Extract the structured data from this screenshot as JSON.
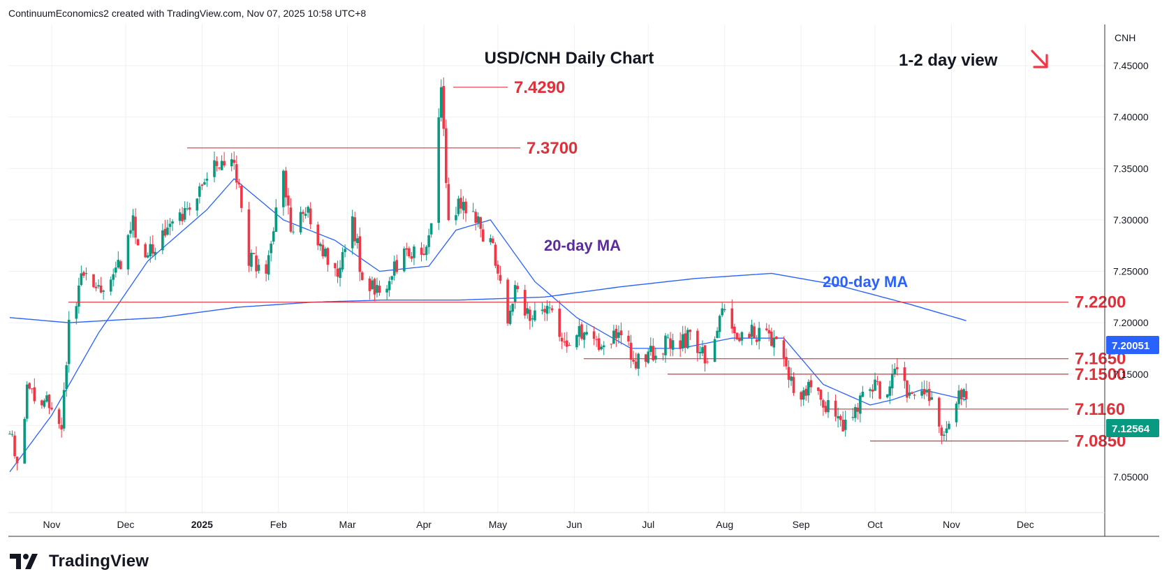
{
  "header": {
    "caption": "ContinuumEconomics2 created with TradingView.com, Nov 07, 2025 10:58 UTC+8"
  },
  "branding": {
    "logo_text": "TradingView",
    "logo_icon": "tradingview-logo-icon"
  },
  "chart_data": {
    "type": "candlestick",
    "title": "USD/CNH Daily Chart",
    "view_label": "1-2 day view",
    "view_arrow_icon": "arrow-down-right-icon",
    "currency_label": "CNH",
    "last_price_label": "7.12564",
    "ma200_price_label": "7.20051",
    "x_tick_labels": [
      "Nov",
      "Dec",
      "2025",
      "Feb",
      "Mar",
      "Apr",
      "May",
      "Jun",
      "Jul",
      "Aug",
      "Sep",
      "Oct",
      "Nov",
      "Dec"
    ],
    "y_tick_labels": [
      "7.45000",
      "7.40000",
      "7.35000",
      "7.30000",
      "7.25000",
      "7.20000",
      "7.15000",
      "7.10000",
      "7.05000"
    ],
    "ylim": [
      7.05,
      7.45
    ],
    "levels": [
      {
        "label": "7.4290",
        "value": 7.429
      },
      {
        "label": "7.3700",
        "value": 7.37
      },
      {
        "label": "7.2200",
        "value": 7.22
      },
      {
        "label": "7.1650",
        "value": 7.165
      },
      {
        "label": "7.1500",
        "value": 7.15
      },
      {
        "label": "7.1160",
        "value": 7.116
      },
      {
        "label": "7.0850",
        "value": 7.085
      }
    ],
    "ma_labels": {
      "ma20": "20-day MA",
      "ma200": "200-day MA"
    },
    "colors": {
      "up": "#089981",
      "down": "#f23645",
      "ma20": "#2962ff",
      "ma200": "#2962ff",
      "level": "#e0313b",
      "ma20_label": "#5b2c9b",
      "ma200_label": "#2962ff"
    },
    "candles_start": "2024-10-15",
    "anchors": [
      {
        "date": "2024-10-15",
        "price": 7.09
      },
      {
        "date": "2024-10-18",
        "price": 7.072
      },
      {
        "date": "2024-10-22",
        "price": 7.13
      },
      {
        "date": "2024-10-31",
        "price": 7.125
      },
      {
        "date": "2024-11-05",
        "price": 7.1
      },
      {
        "date": "2024-11-08",
        "price": 7.2
      },
      {
        "date": "2024-11-13",
        "price": 7.24
      },
      {
        "date": "2024-11-20",
        "price": 7.235
      },
      {
        "date": "2024-11-27",
        "price": 7.245
      },
      {
        "date": "2024-12-04",
        "price": 7.295
      },
      {
        "date": "2024-12-10",
        "price": 7.265
      },
      {
        "date": "2024-12-18",
        "price": 7.29
      },
      {
        "date": "2024-12-26",
        "price": 7.31
      },
      {
        "date": "2025-01-03",
        "price": 7.35
      },
      {
        "date": "2025-01-10",
        "price": 7.36
      },
      {
        "date": "2025-01-15",
        "price": 7.345
      },
      {
        "date": "2025-01-20",
        "price": 7.265
      },
      {
        "date": "2025-01-27",
        "price": 7.25
      },
      {
        "date": "2025-02-03",
        "price": 7.355
      },
      {
        "date": "2025-02-06",
        "price": 7.285
      },
      {
        "date": "2025-02-12",
        "price": 7.31
      },
      {
        "date": "2025-02-17",
        "price": 7.285
      },
      {
        "date": "2025-02-25",
        "price": 7.24
      },
      {
        "date": "2025-03-03",
        "price": 7.3
      },
      {
        "date": "2025-03-07",
        "price": 7.245
      },
      {
        "date": "2025-03-14",
        "price": 7.23
      },
      {
        "date": "2025-03-24",
        "price": 7.27
      },
      {
        "date": "2025-04-01",
        "price": 7.275
      },
      {
        "date": "2025-04-04",
        "price": 7.3
      },
      {
        "date": "2025-04-08",
        "price": 7.42
      },
      {
        "date": "2025-04-11",
        "price": 7.3
      },
      {
        "date": "2025-04-15",
        "price": 7.315
      },
      {
        "date": "2025-04-22",
        "price": 7.3
      },
      {
        "date": "2025-04-29",
        "price": 7.27
      },
      {
        "date": "2025-05-05",
        "price": 7.205
      },
      {
        "date": "2025-05-09",
        "price": 7.235
      },
      {
        "date": "2025-05-14",
        "price": 7.2
      },
      {
        "date": "2025-05-23",
        "price": 7.21
      },
      {
        "date": "2025-05-27",
        "price": 7.18
      },
      {
        "date": "2025-06-03",
        "price": 7.195
      },
      {
        "date": "2025-06-10",
        "price": 7.18
      },
      {
        "date": "2025-06-20",
        "price": 7.185
      },
      {
        "date": "2025-06-27",
        "price": 7.16
      },
      {
        "date": "2025-07-08",
        "price": 7.18
      },
      {
        "date": "2025-07-18",
        "price": 7.185
      },
      {
        "date": "2025-07-25",
        "price": 7.16
      },
      {
        "date": "2025-07-31",
        "price": 7.21
      },
      {
        "date": "2025-08-04",
        "price": 7.185
      },
      {
        "date": "2025-08-12",
        "price": 7.19
      },
      {
        "date": "2025-08-20",
        "price": 7.185
      },
      {
        "date": "2025-08-25",
        "price": 7.165
      },
      {
        "date": "2025-09-01",
        "price": 7.12
      },
      {
        "date": "2025-09-05",
        "price": 7.14
      },
      {
        "date": "2025-09-12",
        "price": 7.12
      },
      {
        "date": "2025-09-17",
        "price": 7.1
      },
      {
        "date": "2025-09-24",
        "price": 7.115
      },
      {
        "date": "2025-09-29",
        "price": 7.145
      },
      {
        "date": "2025-10-03",
        "price": 7.13
      },
      {
        "date": "2025-10-10",
        "price": 7.15
      },
      {
        "date": "2025-10-16",
        "price": 7.13
      },
      {
        "date": "2025-10-23",
        "price": 7.125
      },
      {
        "date": "2025-10-28",
        "price": 7.095
      },
      {
        "date": "2025-11-03",
        "price": 7.125
      },
      {
        "date": "2025-11-04",
        "price": 7.133
      },
      {
        "date": "2025-11-07",
        "price": 7.1256
      }
    ],
    "ma20_anchors": [
      {
        "date": "2024-10-15",
        "price": 7.055
      },
      {
        "date": "2024-11-01",
        "price": 7.11
      },
      {
        "date": "2024-11-20",
        "price": 7.19
      },
      {
        "date": "2024-12-10",
        "price": 7.26
      },
      {
        "date": "2025-01-03",
        "price": 7.31
      },
      {
        "date": "2025-01-14",
        "price": 7.34
      },
      {
        "date": "2025-02-03",
        "price": 7.3
      },
      {
        "date": "2025-02-24",
        "price": 7.28
      },
      {
        "date": "2025-03-14",
        "price": 7.25
      },
      {
        "date": "2025-04-03",
        "price": 7.255
      },
      {
        "date": "2025-04-14",
        "price": 7.29
      },
      {
        "date": "2025-04-28",
        "price": 7.3
      },
      {
        "date": "2025-05-16",
        "price": 7.24
      },
      {
        "date": "2025-06-02",
        "price": 7.205
      },
      {
        "date": "2025-06-24",
        "price": 7.175
      },
      {
        "date": "2025-07-14",
        "price": 7.175
      },
      {
        "date": "2025-08-04",
        "price": 7.185
      },
      {
        "date": "2025-08-25",
        "price": 7.185
      },
      {
        "date": "2025-09-10",
        "price": 7.14
      },
      {
        "date": "2025-09-29",
        "price": 7.12
      },
      {
        "date": "2025-10-08",
        "price": 7.125
      },
      {
        "date": "2025-10-20",
        "price": 7.135
      },
      {
        "date": "2025-11-07",
        "price": 7.125
      }
    ],
    "ma200_anchors": [
      {
        "date": "2024-10-15",
        "price": 7.205
      },
      {
        "date": "2024-11-08",
        "price": 7.2
      },
      {
        "date": "2024-12-15",
        "price": 7.205
      },
      {
        "date": "2025-01-15",
        "price": 7.215
      },
      {
        "date": "2025-02-15",
        "price": 7.22
      },
      {
        "date": "2025-03-15",
        "price": 7.222
      },
      {
        "date": "2025-04-15",
        "price": 7.222
      },
      {
        "date": "2025-05-20",
        "price": 7.225
      },
      {
        "date": "2025-06-20",
        "price": 7.235
      },
      {
        "date": "2025-07-20",
        "price": 7.243
      },
      {
        "date": "2025-08-20",
        "price": 7.248
      },
      {
        "date": "2025-09-15",
        "price": 7.237
      },
      {
        "date": "2025-10-15",
        "price": 7.218
      },
      {
        "date": "2025-11-07",
        "price": 7.202
      }
    ]
  }
}
